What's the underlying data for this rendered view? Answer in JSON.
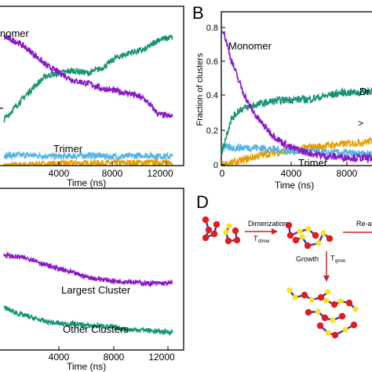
{
  "panels": {
    "A": {
      "tick_labels_x": [
        "4000",
        "8000",
        "12000"
      ],
      "xlabel": "Time (ns)",
      "label_monomer": "nomer",
      "label_trimer": "Trimer"
    },
    "B": {
      "panel_letter": "B",
      "tick_labels_x": [
        "0",
        "4000",
        "8000"
      ],
      "tick_labels_y": [
        "0",
        "0.2",
        "0.4",
        "0.6",
        "0.8"
      ],
      "xlabel": "Time (ns)",
      "ylabel": "Fraction of clusters",
      "label_monomer": "Monomer",
      "label_dimer": "Di",
      "label_trimer": "Trimer",
      "label_gt": ">"
    },
    "C": {
      "tick_labels_x": [
        "4000",
        "8000",
        "12000"
      ],
      "xlabel": "Time (ns)",
      "label_largest": "Largest Cluster",
      "label_other": "Other Clusters"
    },
    "D": {
      "panel_letter": "D",
      "label_dimerization": "Dimerization",
      "label_tdimer": "T",
      "label_tdimer_sub": "dimer",
      "label_reagg": "Re-a",
      "label_growth": "Growth",
      "label_tgrow": "T",
      "label_tgrow_sub": "grow"
    }
  },
  "colors": {
    "monomer": "#8a18c8",
    "dimer": "#179474",
    "trimer": "#56b4e9",
    "larger": "#e69f00",
    "bead_red": "#e41a1c",
    "bead_yellow": "#ffe11a",
    "bond": "#2c3ea8",
    "arrow": "#cc2222"
  },
  "chart_data": [
    {
      "panel": "A",
      "type": "line",
      "x_range": [
        0,
        12000
      ],
      "xlabel": "Time (ns)",
      "series": [
        {
          "name": "Monomer",
          "color": "#8a18c8",
          "x": [
            0,
            1000,
            2000,
            3000,
            4000,
            5000,
            6000,
            7000,
            8000,
            9000,
            10000,
            11000,
            12000
          ],
          "y": [
            0.5,
            0.48,
            0.44,
            0.39,
            0.36,
            0.33,
            0.32,
            0.3,
            0.29,
            0.28,
            0.26,
            0.2,
            0.19
          ]
        },
        {
          "name": "",
          "color": "#179474",
          "x": [
            0,
            1000,
            2000,
            3000,
            4000,
            5000,
            6000,
            7000,
            8000,
            9000,
            10000,
            11000,
            12000
          ],
          "y": [
            0.18,
            0.24,
            0.3,
            0.35,
            0.36,
            0.37,
            0.36,
            0.38,
            0.42,
            0.44,
            0.45,
            0.49,
            0.5
          ]
        },
        {
          "name": "Trimer",
          "color": "#56b4e9",
          "x": [
            0,
            2000,
            4000,
            6000,
            8000,
            10000,
            12000
          ],
          "y": [
            0.04,
            0.04,
            0.035,
            0.04,
            0.035,
            0.04,
            0.035
          ]
        },
        {
          "name": "",
          "color": "#e69f00",
          "x": [
            0,
            2000,
            4000,
            6000,
            8000,
            10000,
            12000
          ],
          "y": [
            0.0,
            0.005,
            0.008,
            0.01,
            0.01,
            0.012,
            0.012
          ]
        }
      ]
    },
    {
      "panel": "B",
      "type": "line",
      "x_range": [
        0,
        11000
      ],
      "y_range": [
        0,
        0.85
      ],
      "xlabel": "Time (ns)",
      "ylabel": "Fraction of clusters",
      "series": [
        {
          "name": "Monomer",
          "color": "#8a18c8",
          "x": [
            0,
            250,
            500,
            1000,
            1500,
            2000,
            2500,
            3000,
            3500,
            4000,
            5000,
            6000,
            8000,
            11000
          ],
          "y": [
            0.8,
            0.72,
            0.62,
            0.48,
            0.36,
            0.28,
            0.22,
            0.17,
            0.13,
            0.1,
            0.07,
            0.05,
            0.04,
            0.03
          ]
        },
        {
          "name": "Di",
          "color": "#179474",
          "x": [
            0,
            500,
            1000,
            2000,
            3000,
            4000,
            5000,
            6000,
            7000,
            8000,
            9000,
            10000,
            11000
          ],
          "y": [
            0.08,
            0.26,
            0.32,
            0.35,
            0.37,
            0.38,
            0.38,
            0.4,
            0.42,
            0.42,
            0.44,
            0.43,
            0.44
          ]
        },
        {
          "name": "Trimer",
          "color": "#56b4e9",
          "x": [
            0,
            1000,
            2000,
            3000,
            4000,
            5000,
            6000,
            7000,
            8000,
            9000,
            10000,
            11000
          ],
          "y": [
            0.1,
            0.1,
            0.1,
            0.09,
            0.08,
            0.08,
            0.07,
            0.07,
            0.06,
            0.06,
            0.06,
            0.05
          ]
        },
        {
          "name": ">",
          "color": "#e69f00",
          "x": [
            0,
            1000,
            2000,
            3000,
            4000,
            5000,
            6000,
            7000,
            8000,
            9000,
            10000,
            11000
          ],
          "y": [
            0.0,
            0.02,
            0.05,
            0.07,
            0.08,
            0.1,
            0.11,
            0.12,
            0.13,
            0.14,
            0.15,
            0.16
          ]
        }
      ]
    },
    {
      "panel": "C",
      "type": "line",
      "x_range": [
        0,
        12000
      ],
      "xlabel": "Time (ns)",
      "series": [
        {
          "name": "Largest Cluster",
          "color": "#8a18c8",
          "x": [
            0,
            1000,
            2000,
            3000,
            4000,
            5000,
            6000,
            7000,
            8000,
            9000,
            10000,
            11000,
            12000
          ],
          "y": [
            0.62,
            0.61,
            0.6,
            0.57,
            0.55,
            0.53,
            0.51,
            0.5,
            0.49,
            0.49,
            0.48,
            0.48,
            0.48
          ]
        },
        {
          "name": "Other Clusters",
          "color": "#179474",
          "x": [
            0,
            1000,
            2000,
            3000,
            4000,
            5000,
            6000,
            7000,
            8000,
            9000,
            10000,
            11000,
            12000
          ],
          "y": [
            0.36,
            0.33,
            0.31,
            0.29,
            0.28,
            0.28,
            0.27,
            0.27,
            0.26,
            0.25,
            0.25,
            0.24,
            0.24
          ]
        }
      ]
    }
  ]
}
